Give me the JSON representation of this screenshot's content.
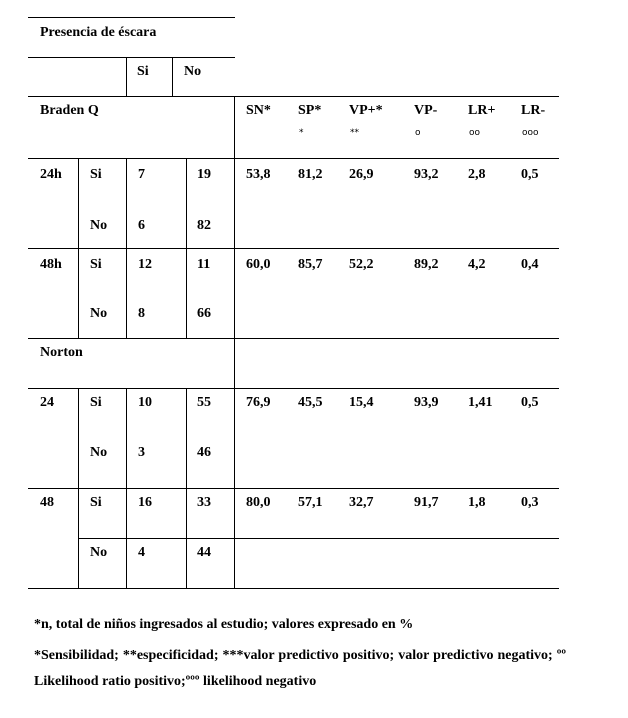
{
  "table": {
    "title": "Presencia de éscara",
    "outcome_cols": [
      "Si",
      "No"
    ],
    "section_braden": "Braden Q",
    "section_norton": "Norton",
    "stat_headers": [
      {
        "label": "SN*",
        "mark": ""
      },
      {
        "label": "SP*",
        "mark": "*"
      },
      {
        "label": "VP+*",
        "mark": "**"
      },
      {
        "label": "VP-",
        "mark": "o"
      },
      {
        "label": "LR+",
        "mark": "oo"
      },
      {
        "label": "LR-",
        "mark": "ooo"
      }
    ],
    "braden_rows": [
      {
        "time": "24h",
        "si": {
          "label": "Si",
          "a": "7",
          "b": "19"
        },
        "no": {
          "label": "No",
          "a": "6",
          "b": "82"
        },
        "stats": [
          "53,8",
          "81,2",
          "26,9",
          "93,2",
          "2,8",
          "0,5"
        ]
      },
      {
        "time": "48h",
        "si": {
          "label": "Si",
          "a": "12",
          "b": "11"
        },
        "no": {
          "label": "No",
          "a": "8",
          "b": "66"
        },
        "stats": [
          "60,0",
          "85,7",
          "52,2",
          "89,2",
          "4,2",
          "0,4"
        ]
      }
    ],
    "norton_rows": [
      {
        "time": "24",
        "si": {
          "label": "Si",
          "a": "10",
          "b": "55"
        },
        "no": {
          "label": "No",
          "a": "3",
          "b": "46"
        },
        "stats": [
          "76,9",
          "45,5",
          "15,4",
          "93,9",
          "1,41",
          "0,5"
        ]
      },
      {
        "time": "48",
        "si": {
          "label": "Si",
          "a": "16",
          "b": "33"
        },
        "no": {
          "label": "No",
          "a": "4",
          "b": "44"
        },
        "stats": [
          "80,0",
          "57,1",
          "32,7",
          "91,7",
          "1,8",
          "0,3"
        ]
      }
    ]
  },
  "footnotes": [
    "*n, total de niños ingresados al estudio; valores expresado en %",
    "*Sensibilidad; **especificidad; ***valor predictivo positivo; valor predictivo negativo; ºº Likelihood ratio positivo;ººº likelihood negativo"
  ]
}
